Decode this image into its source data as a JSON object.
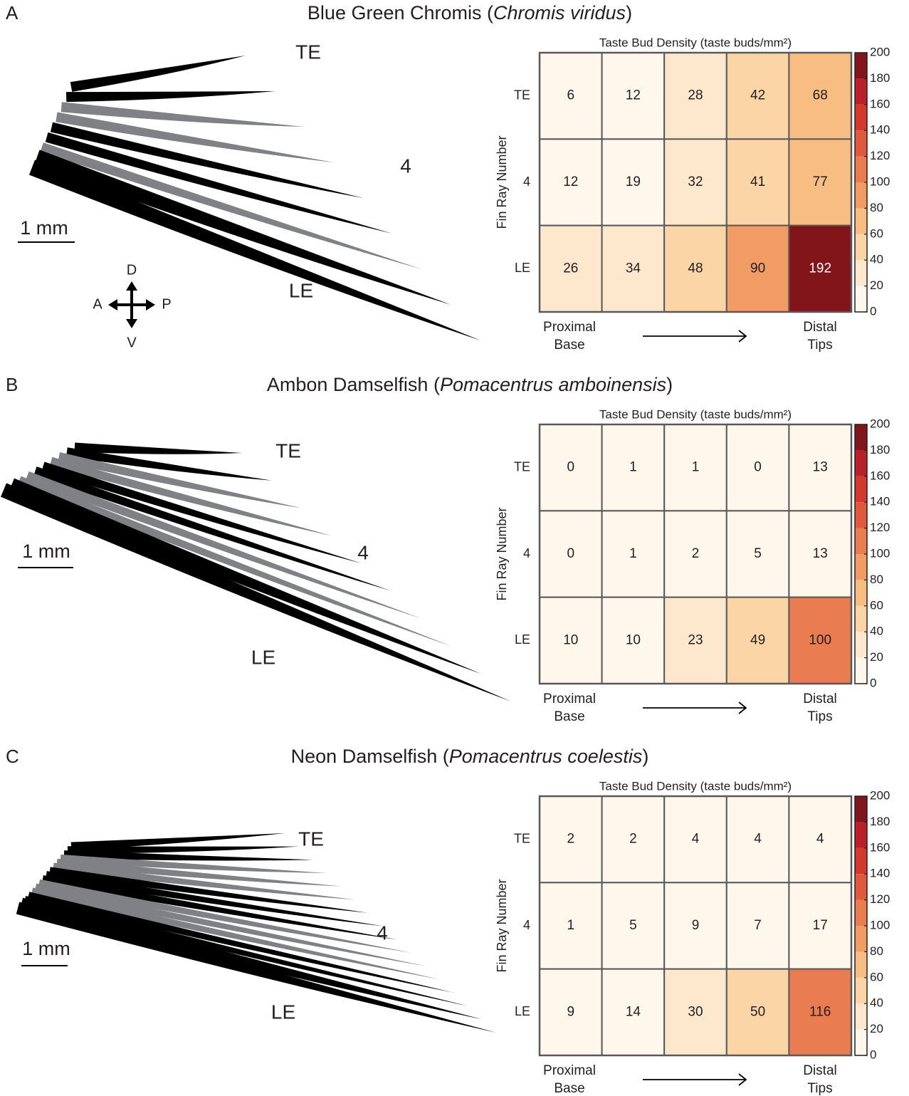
{
  "panels": [
    {
      "letter": "A",
      "title": [
        "Blue Green Chromis (",
        "Chromis viridus",
        ")"
      ],
      "fin_labels": {
        "top": "TE",
        "middle": "4",
        "bottom": "LE",
        "scale": "1 mm"
      },
      "compass": {
        "up": "D",
        "down": "V",
        "left": "A",
        "right": "P"
      }
    },
    {
      "letter": "B",
      "title": [
        "Ambon Damselfish (",
        "Pomacentrus amboinensis",
        ")"
      ],
      "fin_labels": {
        "top": "TE",
        "middle": "4",
        "bottom": "LE",
        "scale": "1 mm"
      }
    },
    {
      "letter": "C",
      "title": [
        "Neon Damselfish (",
        "Pomacentrus coelestis",
        ")"
      ],
      "fin_labels": {
        "top": "TE",
        "middle": "4",
        "bottom": "LE",
        "scale": "1 mm"
      }
    }
  ],
  "chart_data": [
    {
      "type": "heatmap",
      "title": "Taste Bud Density (taste buds/mm²)",
      "ylabel": "Fin Ray Number",
      "rows": [
        "TE",
        "4",
        "LE"
      ],
      "x_start_label": [
        "Proximal",
        "Base"
      ],
      "x_end_label": [
        "Distal",
        "Tips"
      ],
      "values": [
        [
          6,
          12,
          28,
          42,
          68
        ],
        [
          12,
          19,
          32,
          41,
          77
        ],
        [
          26,
          34,
          48,
          90,
          192
        ]
      ],
      "zlim": [
        0,
        200
      ],
      "zticks": [
        0,
        20,
        40,
        60,
        80,
        100,
        120,
        140,
        160,
        180,
        200
      ],
      "colormap": [
        "#fff6ec",
        "#fde8cd",
        "#fcd5a6",
        "#f8bd82",
        "#f19c64",
        "#ea7c52",
        "#df5a3d",
        "#d23a2c",
        "#b72127",
        "#82151a"
      ]
    },
    {
      "type": "heatmap",
      "title": "Taste Bud Density (taste buds/mm²)",
      "ylabel": "Fin Ray Number",
      "rows": [
        "TE",
        "4",
        "LE"
      ],
      "x_start_label": [
        "Proximal",
        "Base"
      ],
      "x_end_label": [
        "Distal",
        "Tips"
      ],
      "values": [
        [
          0,
          1,
          1,
          0,
          13
        ],
        [
          0,
          1,
          2,
          5,
          13
        ],
        [
          10,
          10,
          23,
          49,
          100
        ]
      ],
      "zlim": [
        0,
        200
      ],
      "zticks": [
        0,
        20,
        40,
        60,
        80,
        100,
        120,
        140,
        160,
        180,
        200
      ],
      "colormap": [
        "#fff6ec",
        "#fde8cd",
        "#fcd5a6",
        "#f8bd82",
        "#f19c64",
        "#ea7c52",
        "#df5a3d",
        "#d23a2c",
        "#b72127",
        "#82151a"
      ]
    },
    {
      "type": "heatmap",
      "title": "Taste Bud Density (taste buds/mm²)",
      "ylabel": "Fin Ray Number",
      "rows": [
        "TE",
        "4",
        "LE"
      ],
      "x_start_label": [
        "Proximal",
        "Base"
      ],
      "x_end_label": [
        "Distal",
        "Tips"
      ],
      "values": [
        [
          2,
          2,
          4,
          4,
          4
        ],
        [
          1,
          5,
          9,
          7,
          17
        ],
        [
          9,
          14,
          30,
          50,
          116
        ]
      ],
      "zlim": [
        0,
        200
      ],
      "zticks": [
        0,
        20,
        40,
        60,
        80,
        100,
        120,
        140,
        160,
        180,
        200
      ],
      "colormap": [
        "#fff6ec",
        "#fde8cd",
        "#fcd5a6",
        "#f8bd82",
        "#f19c64",
        "#ea7c52",
        "#df5a3d",
        "#d23a2c",
        "#b72127",
        "#82151a"
      ]
    }
  ]
}
